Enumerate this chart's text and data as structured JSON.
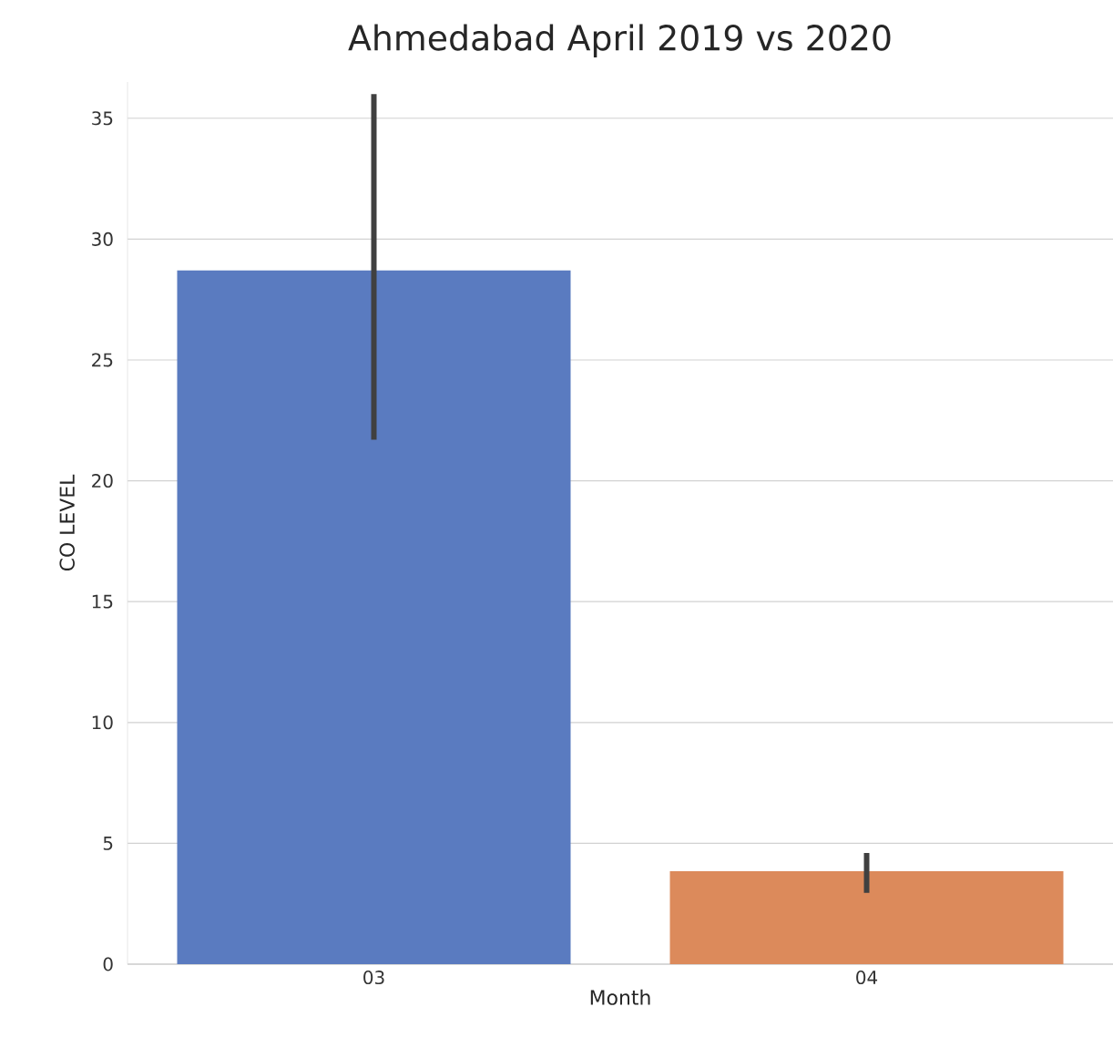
{
  "chart_data": {
    "type": "bar",
    "title": "Ahmedabad April 2019 vs 2020",
    "xlabel": "Month",
    "ylabel": "CO LEVEL",
    "categories": [
      "03",
      "04"
    ],
    "values": [
      28.7,
      3.85
    ],
    "colors": [
      "#5a7bc0",
      "#dc8a5b"
    ],
    "errors": [
      [
        21.7,
        36.0
      ],
      [
        2.95,
        4.6
      ]
    ],
    "ylim": [
      0,
      36.5
    ],
    "yticks": [
      0,
      5,
      10,
      15,
      20,
      25,
      30,
      35
    ],
    "grid": "y"
  }
}
